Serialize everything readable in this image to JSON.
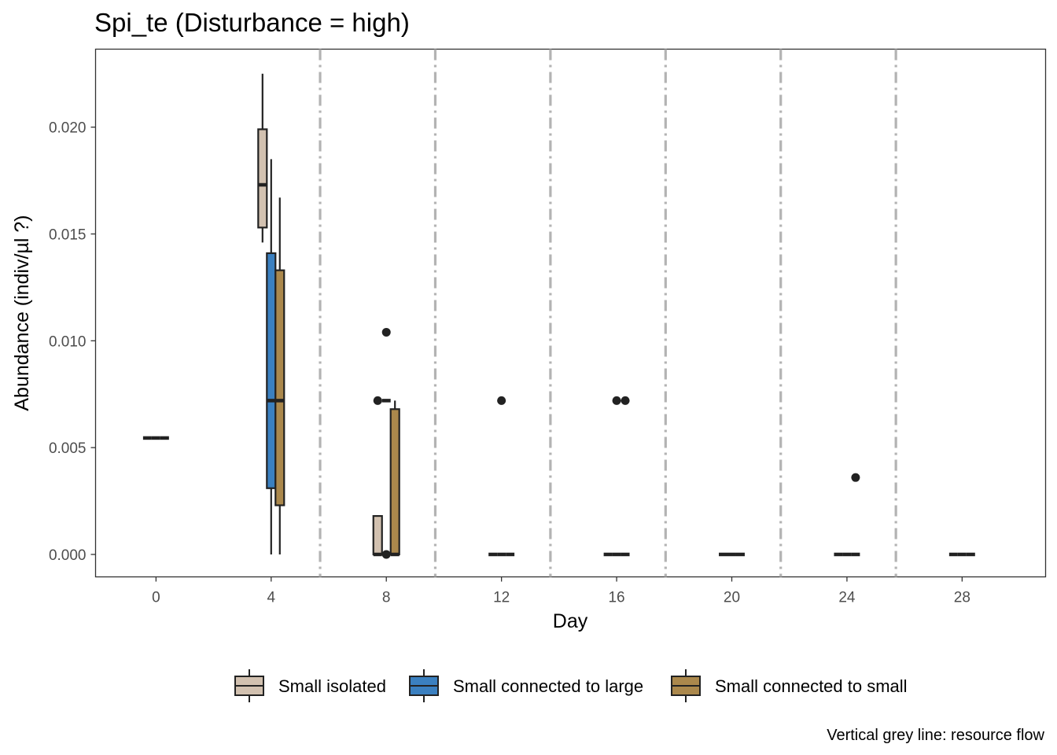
{
  "chart_data": {
    "type": "boxplot",
    "title": "Spi_te (Disturbance = high)",
    "xlabel": "Day",
    "ylabel": "Abundance (indiv/µl ?)",
    "caption": "Vertical grey line: resource flow",
    "xlim": [
      -2.1,
      30.9
    ],
    "ylim": [
      -0.00105,
      0.02365
    ],
    "x_ticks": [
      0,
      4,
      8,
      12,
      16,
      20,
      24,
      28
    ],
    "y_ticks": [
      0.0,
      0.005,
      0.01,
      0.015,
      0.02
    ],
    "y_tick_labels": [
      "0.000",
      "0.005",
      "0.010",
      "0.015",
      "0.020"
    ],
    "grid": false,
    "legend_position": "bottom",
    "resource_flow_lines": [
      5.7,
      9.7,
      13.7,
      17.7,
      21.7,
      25.7
    ],
    "series": [
      {
        "name": "Small isolated",
        "color": "#d2c1b0",
        "boxes": [
          {
            "day": 0,
            "min": 0.00545,
            "q1": 0.00545,
            "median": 0.00545,
            "q3": 0.00545,
            "max": 0.00545,
            "outliers": []
          },
          {
            "day": 4,
            "min": 0.0146,
            "q1": 0.0153,
            "median": 0.0173,
            "q3": 0.0199,
            "max": 0.0225,
            "outliers": []
          },
          {
            "day": 8,
            "min": 0.0,
            "q1": 0.0,
            "median": 0.0,
            "q3": 0.0018,
            "max": 0.0018,
            "outliers": [
              0.0072
            ]
          },
          {
            "day": 12,
            "min": 0.0,
            "q1": 0.0,
            "median": 0.0,
            "q3": 0.0,
            "max": 0.0,
            "outliers": []
          },
          {
            "day": 16,
            "min": 0.0,
            "q1": 0.0,
            "median": 0.0,
            "q3": 0.0,
            "max": 0.0,
            "outliers": []
          },
          {
            "day": 20,
            "min": 0.0,
            "q1": 0.0,
            "median": 0.0,
            "q3": 0.0,
            "max": 0.0,
            "outliers": []
          },
          {
            "day": 24,
            "min": 0.0,
            "q1": 0.0,
            "median": 0.0,
            "q3": 0.0,
            "max": 0.0,
            "outliers": []
          },
          {
            "day": 28,
            "min": 0.0,
            "q1": 0.0,
            "median": 0.0,
            "q3": 0.0,
            "max": 0.0,
            "outliers": []
          }
        ]
      },
      {
        "name": "Small connected to large",
        "color": "#3b80c0",
        "boxes": [
          {
            "day": 0,
            "min": 0.00545,
            "q1": 0.00545,
            "median": 0.00545,
            "q3": 0.00545,
            "max": 0.00545,
            "outliers": []
          },
          {
            "day": 4,
            "min": 0.0,
            "q1": 0.0031,
            "median": 0.0072,
            "q3": 0.0141,
            "max": 0.0185,
            "outliers": []
          },
          {
            "day": 8,
            "min": 0.0072,
            "q1": 0.0072,
            "median": 0.0072,
            "q3": 0.0072,
            "max": 0.0072,
            "outliers": [
              0.0104,
              0.0
            ]
          },
          {
            "day": 12,
            "min": 0.0,
            "q1": 0.0,
            "median": 0.0,
            "q3": 0.0,
            "max": 0.0,
            "outliers": [
              0.0072
            ]
          },
          {
            "day": 16,
            "min": 0.0,
            "q1": 0.0,
            "median": 0.0,
            "q3": 0.0,
            "max": 0.0,
            "outliers": [
              0.0072
            ]
          },
          {
            "day": 20,
            "min": 0.0,
            "q1": 0.0,
            "median": 0.0,
            "q3": 0.0,
            "max": 0.0,
            "outliers": []
          },
          {
            "day": 24,
            "min": 0.0,
            "q1": 0.0,
            "median": 0.0,
            "q3": 0.0,
            "max": 0.0,
            "outliers": []
          },
          {
            "day": 28,
            "min": 0.0,
            "q1": 0.0,
            "median": 0.0,
            "q3": 0.0,
            "max": 0.0,
            "outliers": []
          }
        ]
      },
      {
        "name": "Small connected to small",
        "color": "#ab884c",
        "boxes": [
          {
            "day": 0,
            "min": 0.00545,
            "q1": 0.00545,
            "median": 0.00545,
            "q3": 0.00545,
            "max": 0.00545,
            "outliers": []
          },
          {
            "day": 4,
            "min": 0.0,
            "q1": 0.0023,
            "median": 0.0072,
            "q3": 0.0133,
            "max": 0.0167,
            "outliers": []
          },
          {
            "day": 8,
            "min": 0.0,
            "q1": 0.0,
            "median": 0.0,
            "q3": 0.0068,
            "max": 0.0072,
            "outliers": []
          },
          {
            "day": 12,
            "min": 0.0,
            "q1": 0.0,
            "median": 0.0,
            "q3": 0.0,
            "max": 0.0,
            "outliers": []
          },
          {
            "day": 16,
            "min": 0.0,
            "q1": 0.0,
            "median": 0.0,
            "q3": 0.0,
            "max": 0.0,
            "outliers": [
              0.0072
            ]
          },
          {
            "day": 20,
            "min": 0.0,
            "q1": 0.0,
            "median": 0.0,
            "q3": 0.0,
            "max": 0.0,
            "outliers": []
          },
          {
            "day": 24,
            "min": 0.0,
            "q1": 0.0,
            "median": 0.0,
            "q3": 0.0,
            "max": 0.0,
            "outliers": [
              0.0036
            ]
          },
          {
            "day": 28,
            "min": 0.0,
            "q1": 0.0,
            "median": 0.0,
            "q3": 0.0,
            "max": 0.0,
            "outliers": []
          }
        ]
      }
    ]
  }
}
